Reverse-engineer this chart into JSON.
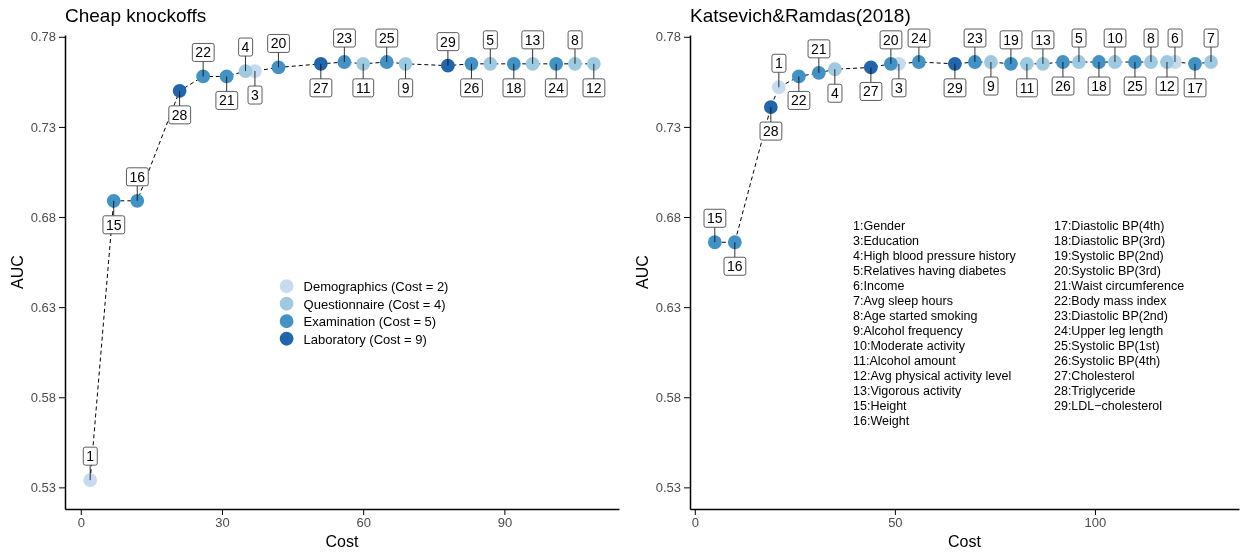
{
  "chart_data": [
    {
      "type": "scatter",
      "title": "Cheap knockoffs",
      "xlabel": "Cost",
      "ylabel": "AUC",
      "xlim": [
        -3.35,
        114.35
      ],
      "xticks": [
        0,
        30,
        60,
        90
      ],
      "ylim": [
        0.518,
        0.781
      ],
      "yticks": [
        0.53,
        0.58,
        0.63,
        0.68,
        0.73,
        0.78
      ],
      "legend": "center right",
      "grid": false,
      "series": [
        {
          "type": "line",
          "marker": "none",
          "color": "#000000",
          "line_style": "dashed",
          "x": [
            2,
            7,
            12,
            21,
            26,
            31,
            35,
            37,
            42,
            51,
            56,
            60,
            65,
            69,
            78,
            83,
            87,
            92,
            96,
            101,
            105,
            109
          ],
          "values": [
            0.534,
            0.689,
            0.689,
            0.75,
            0.758,
            0.758,
            0.761,
            0.761,
            0.763,
            0.765,
            0.766,
            0.765,
            0.766,
            0.765,
            0.764,
            0.765,
            0.765,
            0.765,
            0.765,
            0.765,
            0.765,
            0.765
          ]
        },
        {
          "marker": "circle",
          "name": "Demographics (Cost = 2)",
          "color": "#c6dbef",
          "x": [
            2,
            37
          ],
          "values": [
            0.534,
            0.761
          ]
        },
        {
          "marker": "circle",
          "name": "Questionnaire (Cost = 4)",
          "color": "#9ecae1",
          "x": [
            35,
            60,
            69,
            87,
            96,
            105,
            109
          ],
          "values": [
            0.761,
            0.765,
            0.765,
            0.765,
            0.765,
            0.765,
            0.765
          ]
        },
        {
          "marker": "circle",
          "name": "Examination (Cost = 5)",
          "color": "#4292c6",
          "x": [
            7,
            12,
            26,
            31,
            42,
            56,
            65,
            83,
            92,
            101
          ],
          "values": [
            0.689,
            0.689,
            0.758,
            0.758,
            0.763,
            0.766,
            0.766,
            0.765,
            0.765,
            0.765
          ]
        },
        {
          "marker": "circle",
          "name": "Laboratory (Cost = 9)",
          "color": "#2166ac",
          "x": [
            21,
            51,
            78
          ],
          "values": [
            0.75,
            0.765,
            0.764
          ]
        }
      ],
      "annotations": [
        {
          "text": "1",
          "x": 2,
          "y": 0.534
        },
        {
          "text": "15",
          "x": 7,
          "y": 0.689
        },
        {
          "text": "16",
          "x": 12,
          "y": 0.689
        },
        {
          "text": "28",
          "x": 21,
          "y": 0.75
        },
        {
          "text": "22",
          "x": 26,
          "y": 0.758
        },
        {
          "text": "21",
          "x": 31,
          "y": 0.758
        },
        {
          "text": "4",
          "x": 35,
          "y": 0.761
        },
        {
          "text": "3",
          "x": 37,
          "y": 0.761
        },
        {
          "text": "20",
          "x": 42,
          "y": 0.763
        },
        {
          "text": "27",
          "x": 51,
          "y": 0.765
        },
        {
          "text": "23",
          "x": 56,
          "y": 0.766
        },
        {
          "text": "11",
          "x": 60,
          "y": 0.765
        },
        {
          "text": "25",
          "x": 65,
          "y": 0.766
        },
        {
          "text": "9",
          "x": 69,
          "y": 0.765
        },
        {
          "text": "29",
          "x": 78,
          "y": 0.764
        },
        {
          "text": "26",
          "x": 83,
          "y": 0.765
        },
        {
          "text": "5",
          "x": 87,
          "y": 0.765
        },
        {
          "text": "18",
          "x": 92,
          "y": 0.765
        },
        {
          "text": "13",
          "x": 96,
          "y": 0.765
        },
        {
          "text": "24",
          "x": 101,
          "y": 0.765
        },
        {
          "text": "8",
          "x": 105,
          "y": 0.765
        },
        {
          "text": "12",
          "x": 109,
          "y": 0.765
        }
      ]
    },
    {
      "type": "scatter",
      "title": "Katsevich&Ramdas(2018)",
      "xlabel": "Cost",
      "ylabel": "AUC",
      "xlim": [
        -1.2,
        136
      ],
      "xticks": [
        0,
        50,
        100
      ],
      "ylim": [
        0.518,
        0.781
      ],
      "yticks": [
        0.53,
        0.58,
        0.63,
        0.68,
        0.73,
        0.78
      ],
      "grid": false,
      "series": [
        {
          "type": "line",
          "marker": "none",
          "color": "#000000",
          "line_style": "dashed",
          "x": [
            5,
            10,
            19,
            21,
            26,
            31,
            35,
            44,
            49,
            51,
            56,
            65,
            70,
            74,
            79,
            83,
            87,
            92,
            96,
            101,
            105,
            110,
            114,
            118,
            120,
            125,
            129
          ],
          "values": [
            0.666,
            0.666,
            0.741,
            0.752,
            0.758,
            0.76,
            0.762,
            0.763,
            0.765,
            0.765,
            0.766,
            0.765,
            0.766,
            0.766,
            0.765,
            0.765,
            0.765,
            0.766,
            0.766,
            0.766,
            0.766,
            0.766,
            0.766,
            0.766,
            0.766,
            0.765,
            0.766
          ]
        },
        {
          "marker": "circle",
          "color": "#c6dbef",
          "x": [
            21,
            51,
            120
          ],
          "values": [
            0.752,
            0.765,
            0.766
          ]
        },
        {
          "marker": "circle",
          "color": "#9ecae1",
          "x": [
            35,
            74,
            83,
            87,
            96,
            105,
            114,
            118,
            129
          ],
          "values": [
            0.762,
            0.766,
            0.765,
            0.765,
            0.766,
            0.766,
            0.766,
            0.766,
            0.766
          ]
        },
        {
          "marker": "circle",
          "color": "#4292c6",
          "x": [
            5,
            10,
            26,
            31,
            49,
            56,
            70,
            79,
            92,
            101,
            110,
            125
          ],
          "values": [
            0.666,
            0.666,
            0.758,
            0.76,
            0.765,
            0.766,
            0.766,
            0.765,
            0.766,
            0.766,
            0.766,
            0.765
          ]
        },
        {
          "marker": "circle",
          "color": "#2166ac",
          "x": [
            19,
            44,
            65
          ],
          "values": [
            0.741,
            0.763,
            0.765
          ]
        }
      ],
      "annotations": [
        {
          "text": "15",
          "x": 5,
          "y": 0.666
        },
        {
          "text": "16",
          "x": 10,
          "y": 0.666
        },
        {
          "text": "28",
          "x": 19,
          "y": 0.741
        },
        {
          "text": "1",
          "x": 21,
          "y": 0.752
        },
        {
          "text": "22",
          "x": 26,
          "y": 0.758
        },
        {
          "text": "21",
          "x": 31,
          "y": 0.76
        },
        {
          "text": "4",
          "x": 35,
          "y": 0.762
        },
        {
          "text": "27",
          "x": 44,
          "y": 0.763
        },
        {
          "text": "20",
          "x": 49,
          "y": 0.765
        },
        {
          "text": "3",
          "x": 51,
          "y": 0.765
        },
        {
          "text": "24",
          "x": 56,
          "y": 0.766
        },
        {
          "text": "29",
          "x": 65,
          "y": 0.765
        },
        {
          "text": "23",
          "x": 70,
          "y": 0.766
        },
        {
          "text": "9",
          "x": 74,
          "y": 0.766
        },
        {
          "text": "19",
          "x": 79,
          "y": 0.765
        },
        {
          "text": "11",
          "x": 83,
          "y": 0.765
        },
        {
          "text": "13",
          "x": 87,
          "y": 0.765
        },
        {
          "text": "26",
          "x": 92,
          "y": 0.766
        },
        {
          "text": "5",
          "x": 96,
          "y": 0.766
        },
        {
          "text": "18",
          "x": 101,
          "y": 0.766
        },
        {
          "text": "10",
          "x": 105,
          "y": 0.766
        },
        {
          "text": "25",
          "x": 110,
          "y": 0.766
        },
        {
          "text": "8",
          "x": 114,
          "y": 0.766
        },
        {
          "text": "12",
          "x": 118,
          "y": 0.766
        },
        {
          "text": "6",
          "x": 120,
          "y": 0.766
        },
        {
          "text": "17",
          "x": 125,
          "y": 0.765
        },
        {
          "text": "7",
          "x": 129,
          "y": 0.766
        },
        "1:Gender",
        "3:Education",
        "4:High blood pressure history",
        "5:Relatives having diabetes",
        "6:Income",
        "7:Avg sleep hours",
        "8:Age started smoking",
        "9:Alcohol frequency",
        "10:Moderate activity",
        "11:Alcohol amount",
        "12:Avg physical activity level",
        "13:Vigorous activity",
        "15:Height",
        "16:Weight",
        "17:Diastolic BP(4th)",
        "18:Diastolic BP(3rd)",
        "19:Systolic BP(2nd)",
        "20:Systolic BP(3rd)",
        "21:Waist circumference",
        "22:Body mass index",
        "23:Diastolic BP(2nd)",
        "24:Upper leg length",
        "25:Systolic BP(1st)",
        "26:Systolic BP(4th)",
        "27:Cholesterol",
        "28:Triglyceride",
        "29:LDL−cholesterol"
      ]
    }
  ]
}
